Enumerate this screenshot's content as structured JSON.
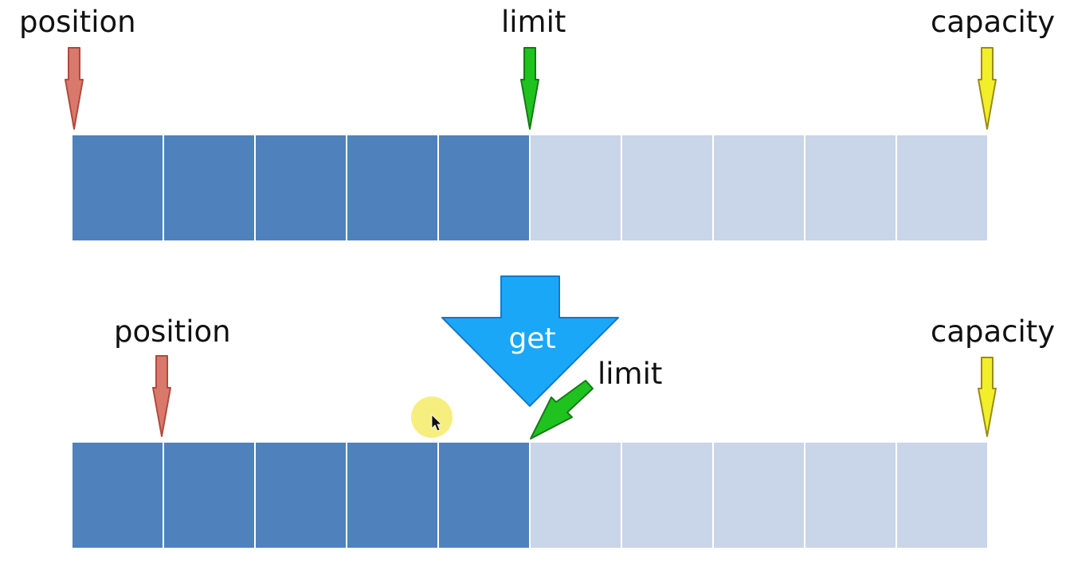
{
  "colors": {
    "filled": "#4f81bd",
    "empty": "#c9d5e8",
    "position_arrow": "#d9796b",
    "position_arrow_stroke": "#b04a3c",
    "limit_arrow": "#1fc21f",
    "limit_arrow_stroke": "#157a15",
    "capacity_arrow": "#f2ee2a",
    "capacity_arrow_stroke": "#9a8b16",
    "get_arrow": "#1aa7f7",
    "get_arrow_stroke": "#1478c9",
    "cursor_highlight": "#f4ec6a"
  },
  "top": {
    "position_label": "position",
    "limit_label": "limit",
    "capacity_label": "capacity",
    "cells_total": 10,
    "cells_filled": 5
  },
  "action": {
    "label": "get"
  },
  "bottom": {
    "position_label": "position",
    "limit_label": "limit",
    "capacity_label": "capacity",
    "cells_total": 10,
    "cells_filled": 5
  },
  "icons": [
    "position-arrow-icon",
    "limit-arrow-icon",
    "capacity-arrow-icon",
    "get-arrow-icon",
    "mouse-cursor-icon"
  ]
}
